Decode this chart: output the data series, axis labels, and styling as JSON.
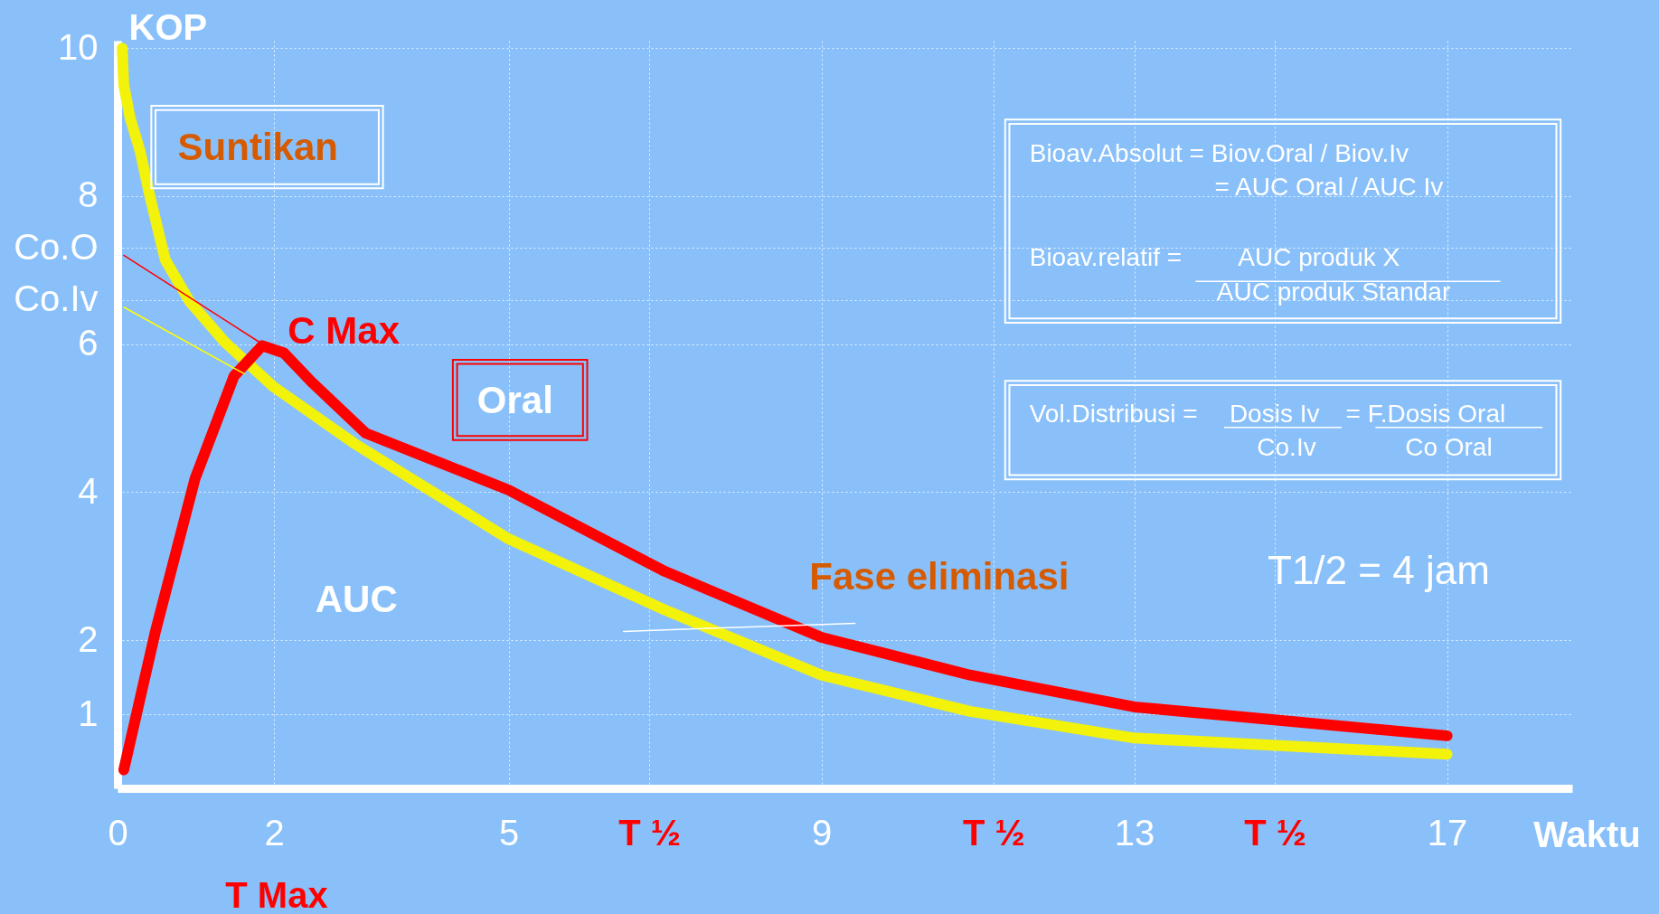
{
  "chart_data": {
    "type": "line",
    "xlabel": "Waktu",
    "ylabel": "KOP",
    "xlim": [
      0,
      18.6
    ],
    "ylim": [
      0,
      10.1
    ],
    "xticks": [
      0,
      2,
      5,
      {
        "value": 6.8,
        "label": "T ½"
      },
      9,
      {
        "value": 11.2,
        "label": "T ½"
      },
      13,
      {
        "value": 14.8,
        "label": "T ½"
      },
      17
    ],
    "yticks": [
      1,
      2,
      4,
      6,
      {
        "value": 6.6,
        "label": "Co.Iv"
      },
      {
        "value": 7.3,
        "label": "Co.O"
      },
      8,
      10
    ],
    "grid": true,
    "series": [
      {
        "name": "Suntikan",
        "color": "#f2f20a",
        "x": [
          0.06,
          0.08,
          0.16,
          0.29,
          0.42,
          0.61,
          0.92,
          1.37,
          2,
          3.04,
          5,
          7,
          9,
          10.9,
          13,
          17
        ],
        "values": [
          10.0,
          9.5,
          9.06,
          8.6,
          7.97,
          7.14,
          6.58,
          6.03,
          5.42,
          4.65,
          3.37,
          2.41,
          1.53,
          1.04,
          0.68,
          0.46
        ]
      },
      {
        "name": "Oral",
        "color": "#ff0000",
        "x": [
          0.08,
          0.48,
          0.99,
          1.49,
          1.85,
          2.13,
          2.48,
          3.17,
          5,
          7,
          9,
          10.9,
          13,
          17
        ],
        "values": [
          0.25,
          2.1,
          4.18,
          5.57,
          5.98,
          5.88,
          5.49,
          4.8,
          4.03,
          2.93,
          2.04,
          1.53,
          1.1,
          0.71
        ]
      },
      {
        "color": "#ff0000",
        "x": [
          0.08,
          1.81
        ],
        "values": [
          7.2,
          6.03
        ]
      },
      {
        "color": "#ffff00",
        "x": [
          0.08,
          1.62
        ],
        "values": [
          6.5,
          5.6
        ]
      },
      {
        "color": "#ffffff",
        "x": [
          6.47,
          9.43
        ],
        "values": [
          2.12,
          2.23
        ]
      }
    ],
    "annotations": [
      "Bioav.Absolut = Biov.Oral / Biov.Iv",
      "= AUC Oral / AUC Iv",
      "Bioav.relatif =",
      "AUC produk  X",
      "AUC produk Standar",
      "Vol.Distribusi =",
      "Dosis Iv",
      "= F.Dosis Oral",
      "Co.Iv",
      "Co Oral",
      "T1/2 = 4 jam",
      "AUC",
      "Fase eliminasi",
      "C Max",
      "T Max"
    ]
  }
}
